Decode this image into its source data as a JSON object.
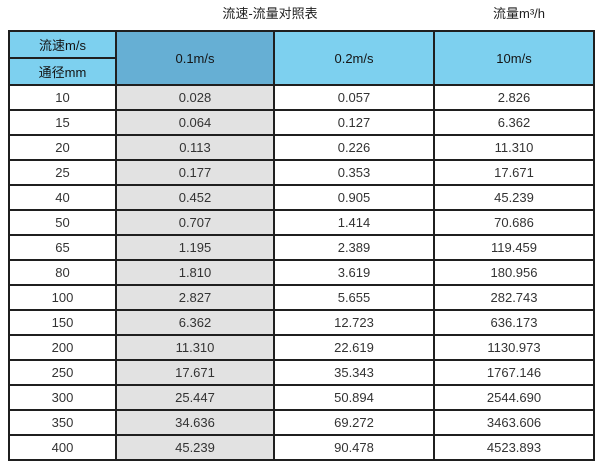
{
  "titles": {
    "left": "流速-流量对照表",
    "right": "流量m³/h"
  },
  "table": {
    "corner_top": "流速m/s",
    "corner_bottom": "通径mm",
    "velocity_headers": [
      "0.1m/s",
      "0.2m/s",
      "10m/s"
    ]
  },
  "colors": {
    "header_light_blue": "#7DD0EF",
    "header_dark_blue": "#66AFD4",
    "highlight_column_gray": "#E2E2E2",
    "border": "#1f1f1f"
  },
  "chart_data": {
    "type": "table",
    "title": "流速-流量对照表",
    "unit_label": "流量m³/h",
    "columns": [
      "通径mm",
      "0.1m/s",
      "0.2m/s",
      "10m/s"
    ],
    "rows": [
      [
        "10",
        "0.028",
        "0.057",
        "2.826"
      ],
      [
        "15",
        "0.064",
        "0.127",
        "6.362"
      ],
      [
        "20",
        "0.113",
        "0.226",
        "11.310"
      ],
      [
        "25",
        "0.177",
        "0.353",
        "17.671"
      ],
      [
        "40",
        "0.452",
        "0.905",
        "45.239"
      ],
      [
        "50",
        "0.707",
        "1.414",
        "70.686"
      ],
      [
        "65",
        "1.195",
        "2.389",
        "119.459"
      ],
      [
        "80",
        "1.810",
        "3.619",
        "180.956"
      ],
      [
        "100",
        "2.827",
        "5.655",
        "282.743"
      ],
      [
        "150",
        "6.362",
        "12.723",
        "636.173"
      ],
      [
        "200",
        "11.310",
        "22.619",
        "1130.973"
      ],
      [
        "250",
        "17.671",
        "35.343",
        "1767.146"
      ],
      [
        "300",
        "25.447",
        "50.894",
        "2544.690"
      ],
      [
        "350",
        "34.636",
        "69.272",
        "3463.606"
      ],
      [
        "400",
        "45.239",
        "90.478",
        "4523.893"
      ]
    ]
  }
}
